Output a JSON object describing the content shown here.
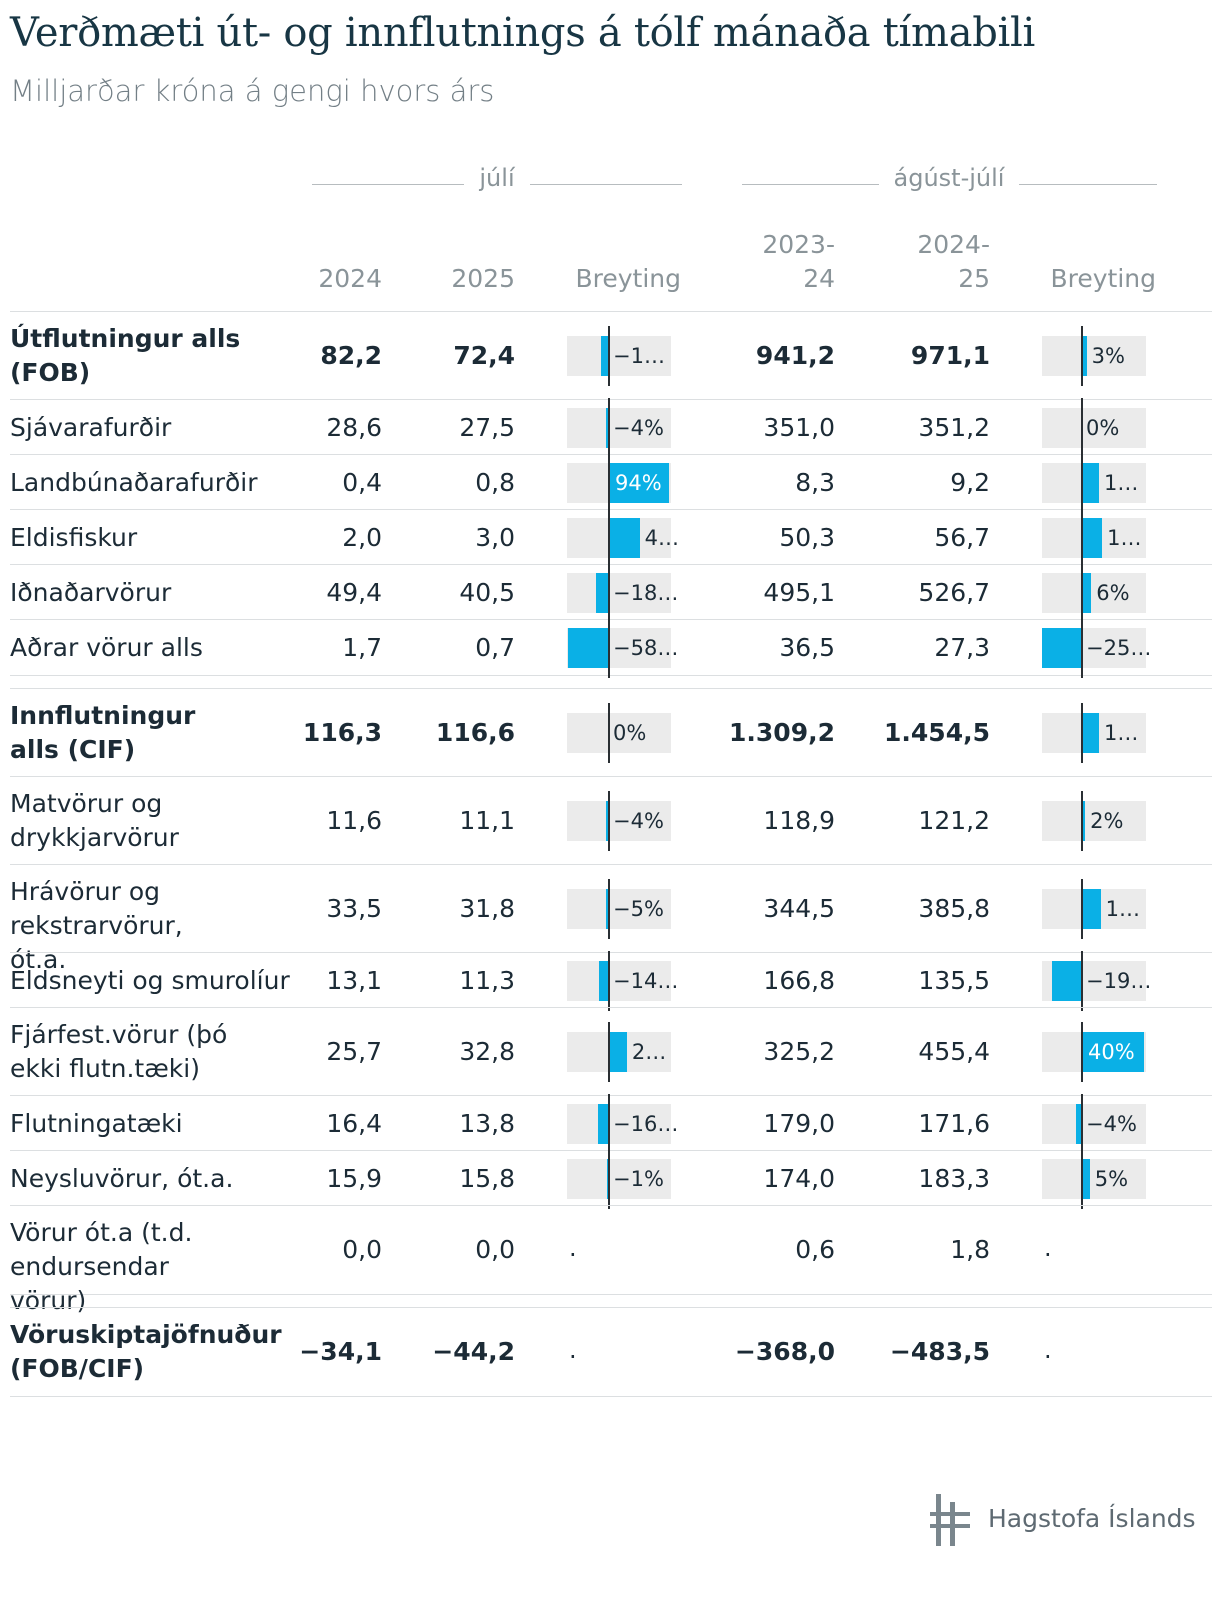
{
  "title": "Verðmæti út- og innflutnings á tólf mánaða tímabili",
  "subtitle": "Milljarðar króna á gengi hvors árs",
  "groups": {
    "monthly": "júlí",
    "annual": "ágúst-júlí"
  },
  "columns": {
    "c1": "2024",
    "c2": "2025",
    "c3": "Breyting",
    "c4a": "2023-",
    "c4b": "24",
    "c5a": "2024-",
    "c5b": "25",
    "c6": "Breyting"
  },
  "chart_data": {
    "type": "table",
    "title": "Verðmæti út- og innflutnings á tólf mánaða tímabili",
    "subtitle": "Milljarðar króna á gengi hvors árs",
    "rows": [
      {
        "label": "Útflutningur alls (FOB)",
        "bold": true,
        "v2024": "82,2",
        "v2025": "72,4",
        "m_change": -12,
        "m_text": "−1…",
        "y1": "941,2",
        "y2": "971,1",
        "y_change": 3,
        "y_text": "3%"
      },
      {
        "label": "Sjávarafurðir",
        "v2024": "28,6",
        "v2025": "27,5",
        "m_change": -4,
        "m_text": "−4%",
        "y1": "351,0",
        "y2": "351,2",
        "y_change": 0,
        "y_text": "0%"
      },
      {
        "label": "Landbúnaðarafurðir",
        "v2024": "0,4",
        "v2025": "0,8",
        "m_change": 94,
        "m_text": "94%",
        "y1": "8,3",
        "y2": "9,2",
        "y_change": 11,
        "y_text": "1…"
      },
      {
        "label": "Eldisfiskur",
        "v2024": "2,0",
        "v2025": "3,0",
        "m_change": 48,
        "m_text": "4…",
        "y1": "50,3",
        "y2": "56,7",
        "y_change": 13,
        "y_text": "1…"
      },
      {
        "label": "Iðnaðarvörur",
        "v2024": "49,4",
        "v2025": "40,5",
        "m_change": -18,
        "m_text": "−18…",
        "y1": "495,1",
        "y2": "526,7",
        "y_change": 6,
        "y_text": "6%"
      },
      {
        "label": "Aðrar vörur alls",
        "v2024": "1,7",
        "v2025": "0,7",
        "m_change": -58,
        "m_text": "−58…",
        "y1": "36,5",
        "y2": "27,3",
        "y_change": -25,
        "y_text": "−25…"
      },
      {
        "label": "Innflutningur alls (CIF)",
        "bold": true,
        "gap": true,
        "v2024": "116,3",
        "v2025": "116,6",
        "m_change": 0,
        "m_text": "0%",
        "y1": "1.309,2",
        "y2": "1.454,5",
        "y_change": 11,
        "y_text": "1…"
      },
      {
        "label": "Matvörur og drykkjarvörur",
        "v2024": "11,6",
        "v2025": "11,1",
        "m_change": -4,
        "m_text": "−4%",
        "y1": "118,9",
        "y2": "121,2",
        "y_change": 2,
        "y_text": "2%"
      },
      {
        "label": "Hrávörur og rekstrarvörur, ót.a.",
        "v2024": "33,5",
        "v2025": "31,8",
        "m_change": -5,
        "m_text": "−5%",
        "y1": "344,5",
        "y2": "385,8",
        "y_change": 12,
        "y_text": "1…"
      },
      {
        "label": "Eldsneyti og smurolíur",
        "v2024": "13,1",
        "v2025": "11,3",
        "m_change": -14,
        "m_text": "−14…",
        "y1": "166,8",
        "y2": "135,5",
        "y_change": -19,
        "y_text": "−19…"
      },
      {
        "label": "Fjárfest.vörur (þó ekki flutn.tæki)",
        "v2024": "25,7",
        "v2025": "32,8",
        "m_change": 28,
        "m_text": "2…",
        "y1": "325,2",
        "y2": "455,4",
        "y_change": 40,
        "y_text": "40%"
      },
      {
        "label": "Flutningatæki",
        "v2024": "16,4",
        "v2025": "13,8",
        "m_change": -16,
        "m_text": "−16…",
        "y1": "179,0",
        "y2": "171,6",
        "y_change": -4,
        "y_text": "−4%"
      },
      {
        "label": "Neysluvörur, ót.a.",
        "v2024": "15,9",
        "v2025": "15,8",
        "m_change": -1,
        "m_text": "−1%",
        "y1": "174,0",
        "y2": "183,3",
        "y_change": 5,
        "y_text": "5%"
      },
      {
        "label": "Vörur ót.a (t.d. endursendar vörur)",
        "v2024": "0,0",
        "v2025": "0,0",
        "m_change": null,
        "m_text": ".",
        "y1": "0,6",
        "y2": "1,8",
        "y_change": null,
        "y_text": "."
      },
      {
        "label": "Vöruskiptajöfnuður (FOB/CIF)",
        "bold": true,
        "gap": true,
        "v2024": "−34,1",
        "v2025": "−44,2",
        "m_change": null,
        "m_text": ".",
        "y1": "−368,0",
        "y2": "−483,5",
        "y_change": null,
        "y_text": "."
      }
    ]
  },
  "footer": {
    "logo_text": "Hagstofa Íslands"
  },
  "colors": {
    "bar": "#0ab0e6",
    "bar_bg": "#ebebeb",
    "title": "#183644"
  }
}
